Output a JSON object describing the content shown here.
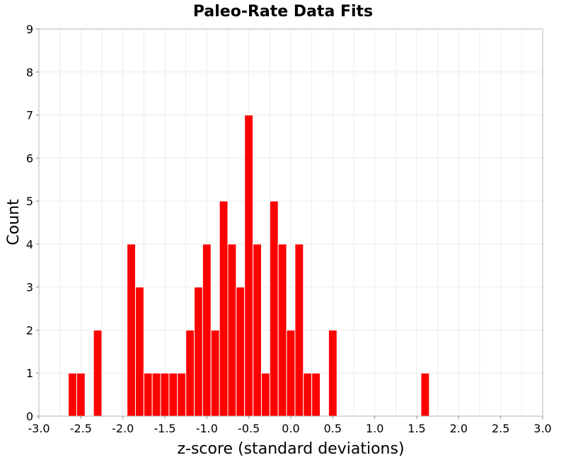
{
  "chart_data": {
    "type": "bar",
    "title": "Paleo-Rate Data Fits",
    "xlabel": "z-score (standard deviations)",
    "ylabel": "Count",
    "xlim": [
      -3.0,
      3.0
    ],
    "ylim": [
      0,
      9
    ],
    "bin_width": 0.1,
    "grid": true,
    "x_ticks": [
      "-3.0",
      "-2.5",
      "-2.0",
      "-1.5",
      "-1.0",
      "-0.5",
      "0.0",
      "0.5",
      "1.0",
      "1.5",
      "2.0",
      "2.5",
      "3.0"
    ],
    "y_ticks": [
      "0",
      "1",
      "2",
      "3",
      "4",
      "5",
      "6",
      "7",
      "8",
      "9"
    ],
    "bar_color": "#ff0000",
    "bins": [
      {
        "x": -2.6,
        "count": 1
      },
      {
        "x": -2.5,
        "count": 1
      },
      {
        "x": -2.3,
        "count": 2
      },
      {
        "x": -1.9,
        "count": 4
      },
      {
        "x": -1.8,
        "count": 3
      },
      {
        "x": -1.7,
        "count": 1
      },
      {
        "x": -1.6,
        "count": 1
      },
      {
        "x": -1.5,
        "count": 1
      },
      {
        "x": -1.4,
        "count": 1
      },
      {
        "x": -1.3,
        "count": 1
      },
      {
        "x": -1.2,
        "count": 2
      },
      {
        "x": -1.1,
        "count": 3
      },
      {
        "x": -1.0,
        "count": 4
      },
      {
        "x": -0.9,
        "count": 2
      },
      {
        "x": -0.8,
        "count": 5
      },
      {
        "x": -0.7,
        "count": 4
      },
      {
        "x": -0.6,
        "count": 3
      },
      {
        "x": -0.5,
        "count": 7
      },
      {
        "x": -0.4,
        "count": 4
      },
      {
        "x": -0.3,
        "count": 1
      },
      {
        "x": -0.2,
        "count": 5
      },
      {
        "x": -0.1,
        "count": 4
      },
      {
        "x": 0.0,
        "count": 2
      },
      {
        "x": 0.1,
        "count": 4
      },
      {
        "x": 0.2,
        "count": 1
      },
      {
        "x": 0.3,
        "count": 1
      },
      {
        "x": 0.5,
        "count": 2
      },
      {
        "x": 1.6,
        "count": 1
      }
    ]
  }
}
